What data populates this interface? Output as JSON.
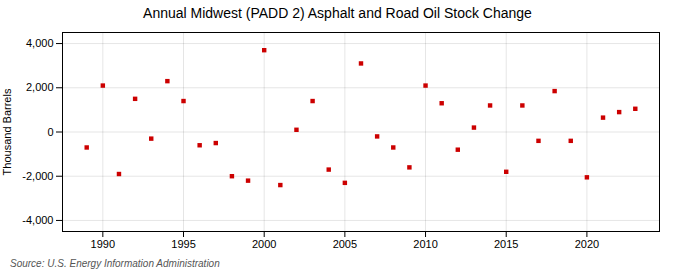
{
  "chart_data": {
    "type": "scatter",
    "title": "Annual Midwest (PADD 2) Asphalt and Road Oil Stock Change",
    "ylabel": "Thousand Barrels",
    "source": "Source: U.S. Energy Information Administration",
    "x": [
      1989,
      1990,
      1991,
      1992,
      1993,
      1994,
      1995,
      1996,
      1997,
      1998,
      1999,
      2000,
      2001,
      2002,
      2003,
      2004,
      2005,
      2006,
      2007,
      2008,
      2009,
      2010,
      2011,
      2012,
      2013,
      2014,
      2015,
      2016,
      2017,
      2018,
      2019,
      2020,
      2021,
      2022,
      2023
    ],
    "values": [
      -700,
      2100,
      -1900,
      1500,
      -300,
      2300,
      1400,
      -600,
      -500,
      -2000,
      -2200,
      3700,
      -2400,
      100,
      1400,
      -1700,
      -2300,
      3100,
      -200,
      -700,
      -1600,
      2100,
      1300,
      -800,
      200,
      1200,
      -1800,
      1200,
      -400,
      1850,
      -400,
      -2050,
      650,
      900,
      1050
    ],
    "color": "#cc0000",
    "marker": "square",
    "xlim": [
      1987.5,
      2024.5
    ],
    "xticks": [
      1990,
      1995,
      2000,
      2005,
      2010,
      2015,
      2020
    ],
    "ylim": [
      -4500,
      4500
    ],
    "yticks": [
      {
        "value": -4000,
        "label": "-4,000"
      },
      {
        "value": -2000,
        "label": "-2,000"
      },
      0,
      {
        "value": 2000,
        "label": "2,000"
      },
      {
        "value": 4000,
        "label": "4,000"
      }
    ],
    "grid": true
  }
}
